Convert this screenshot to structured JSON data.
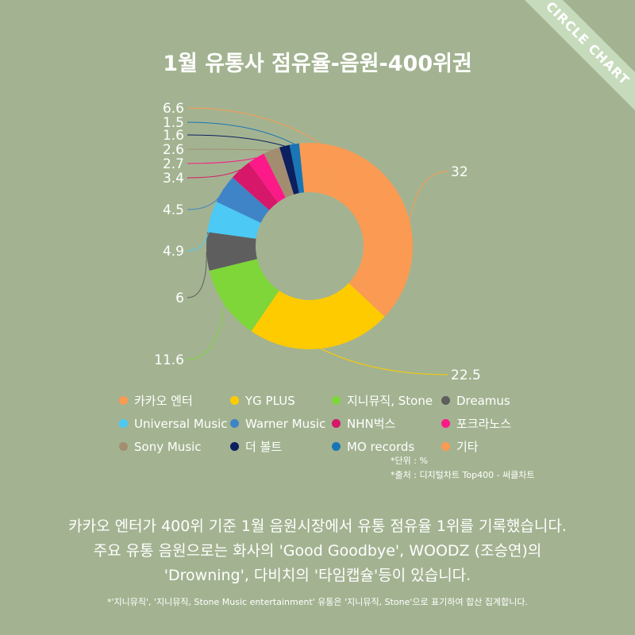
{
  "ribbon": "CIRCLE CHART",
  "chart_data": {
    "type": "pie",
    "title": "1월 유통사 점유율-음원-400위권",
    "categories": [
      "카카오 엔터",
      "YG PLUS",
      "지니뮤직, Stone",
      "Dreamus",
      "Universal Music",
      "Warner Music",
      "NHN벅스",
      "포크라노스",
      "Sony Music",
      "더 볼트",
      "MO records",
      "기타"
    ],
    "values": [
      32,
      22.5,
      11.6,
      6,
      4.9,
      4.5,
      3.4,
      2.7,
      2.6,
      1.6,
      1.5,
      6.6
    ],
    "value_labels": [
      "32",
      "22.5",
      "11.6",
      "6",
      "4.9",
      "4.5",
      "3.4",
      "2.7",
      "2.6",
      "1.6",
      "1.5",
      "6.6"
    ],
    "colors": [
      "#fb9a52",
      "#fecb00",
      "#7ed639",
      "#5e5e5e",
      "#4cc9f5",
      "#3f84c6",
      "#d7176a",
      "#fc1a88",
      "#a38d71",
      "#0c1f5e",
      "#1a75b5",
      "#fb9a52"
    ],
    "donut": true
  },
  "notes": {
    "unit": "*단위 : %",
    "source": "*출처 : 디지털차트 Top400 - 써클차트"
  },
  "description": {
    "line1": "카카오 엔터가 400위 기준 1월 음원시장에서 유통 점유율 1위를 기록했습니다.",
    "line2": "주요 유통 음원으로는 화사의 'Good Goodbye', WOODZ (조승연)의",
    "line3": "'Drowning', 다비치의 '타임캡슐'등이 있습니다."
  },
  "footnote": "*'지니뮤직', '지니뮤직, Stone Music entertainment' 유통은 '지니뮤직, Stone'으로 표기하여 합산 집계합니다."
}
